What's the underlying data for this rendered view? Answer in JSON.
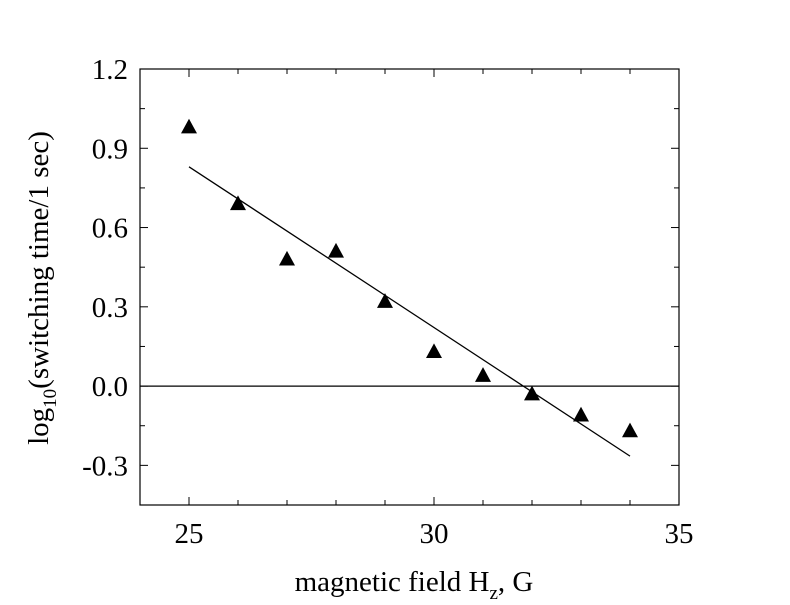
{
  "chart_data": {
    "type": "scatter",
    "title": "",
    "xlabel": {
      "prefix": "magnetic field H",
      "subscript": "z",
      "suffix": ", G"
    },
    "ylabel": {
      "prefix": "log",
      "subscript": "10",
      "suffix": "(switching time/1 sec)"
    },
    "xlim": [
      24,
      35
    ],
    "ylim": [
      -0.45,
      1.2
    ],
    "xticks": [
      25,
      30,
      35
    ],
    "xtick_labels": [
      "25",
      "30",
      "35"
    ],
    "yticks": [
      -0.3,
      0.0,
      0.3,
      0.6,
      0.9,
      1.2
    ],
    "ytick_labels": [
      "-0.3",
      "0.0",
      "0.3",
      "0.6",
      "0.9",
      "1.2"
    ],
    "grid": false,
    "legend": "none",
    "series": [
      {
        "marker": "triangle",
        "color": "#000000",
        "x": [
          25,
          26,
          27,
          28,
          29,
          30,
          31,
          32,
          33,
          34
        ],
        "y": [
          0.98,
          0.69,
          0.48,
          0.51,
          0.32,
          0.13,
          0.04,
          -0.03,
          -0.11,
          -0.17
        ]
      }
    ],
    "fit_line": {
      "x": [
        25,
        34
      ],
      "y": [
        0.83,
        -0.265
      ],
      "color": "#000000"
    },
    "reference_line": {
      "y": 0.0,
      "color": "#000000"
    }
  }
}
